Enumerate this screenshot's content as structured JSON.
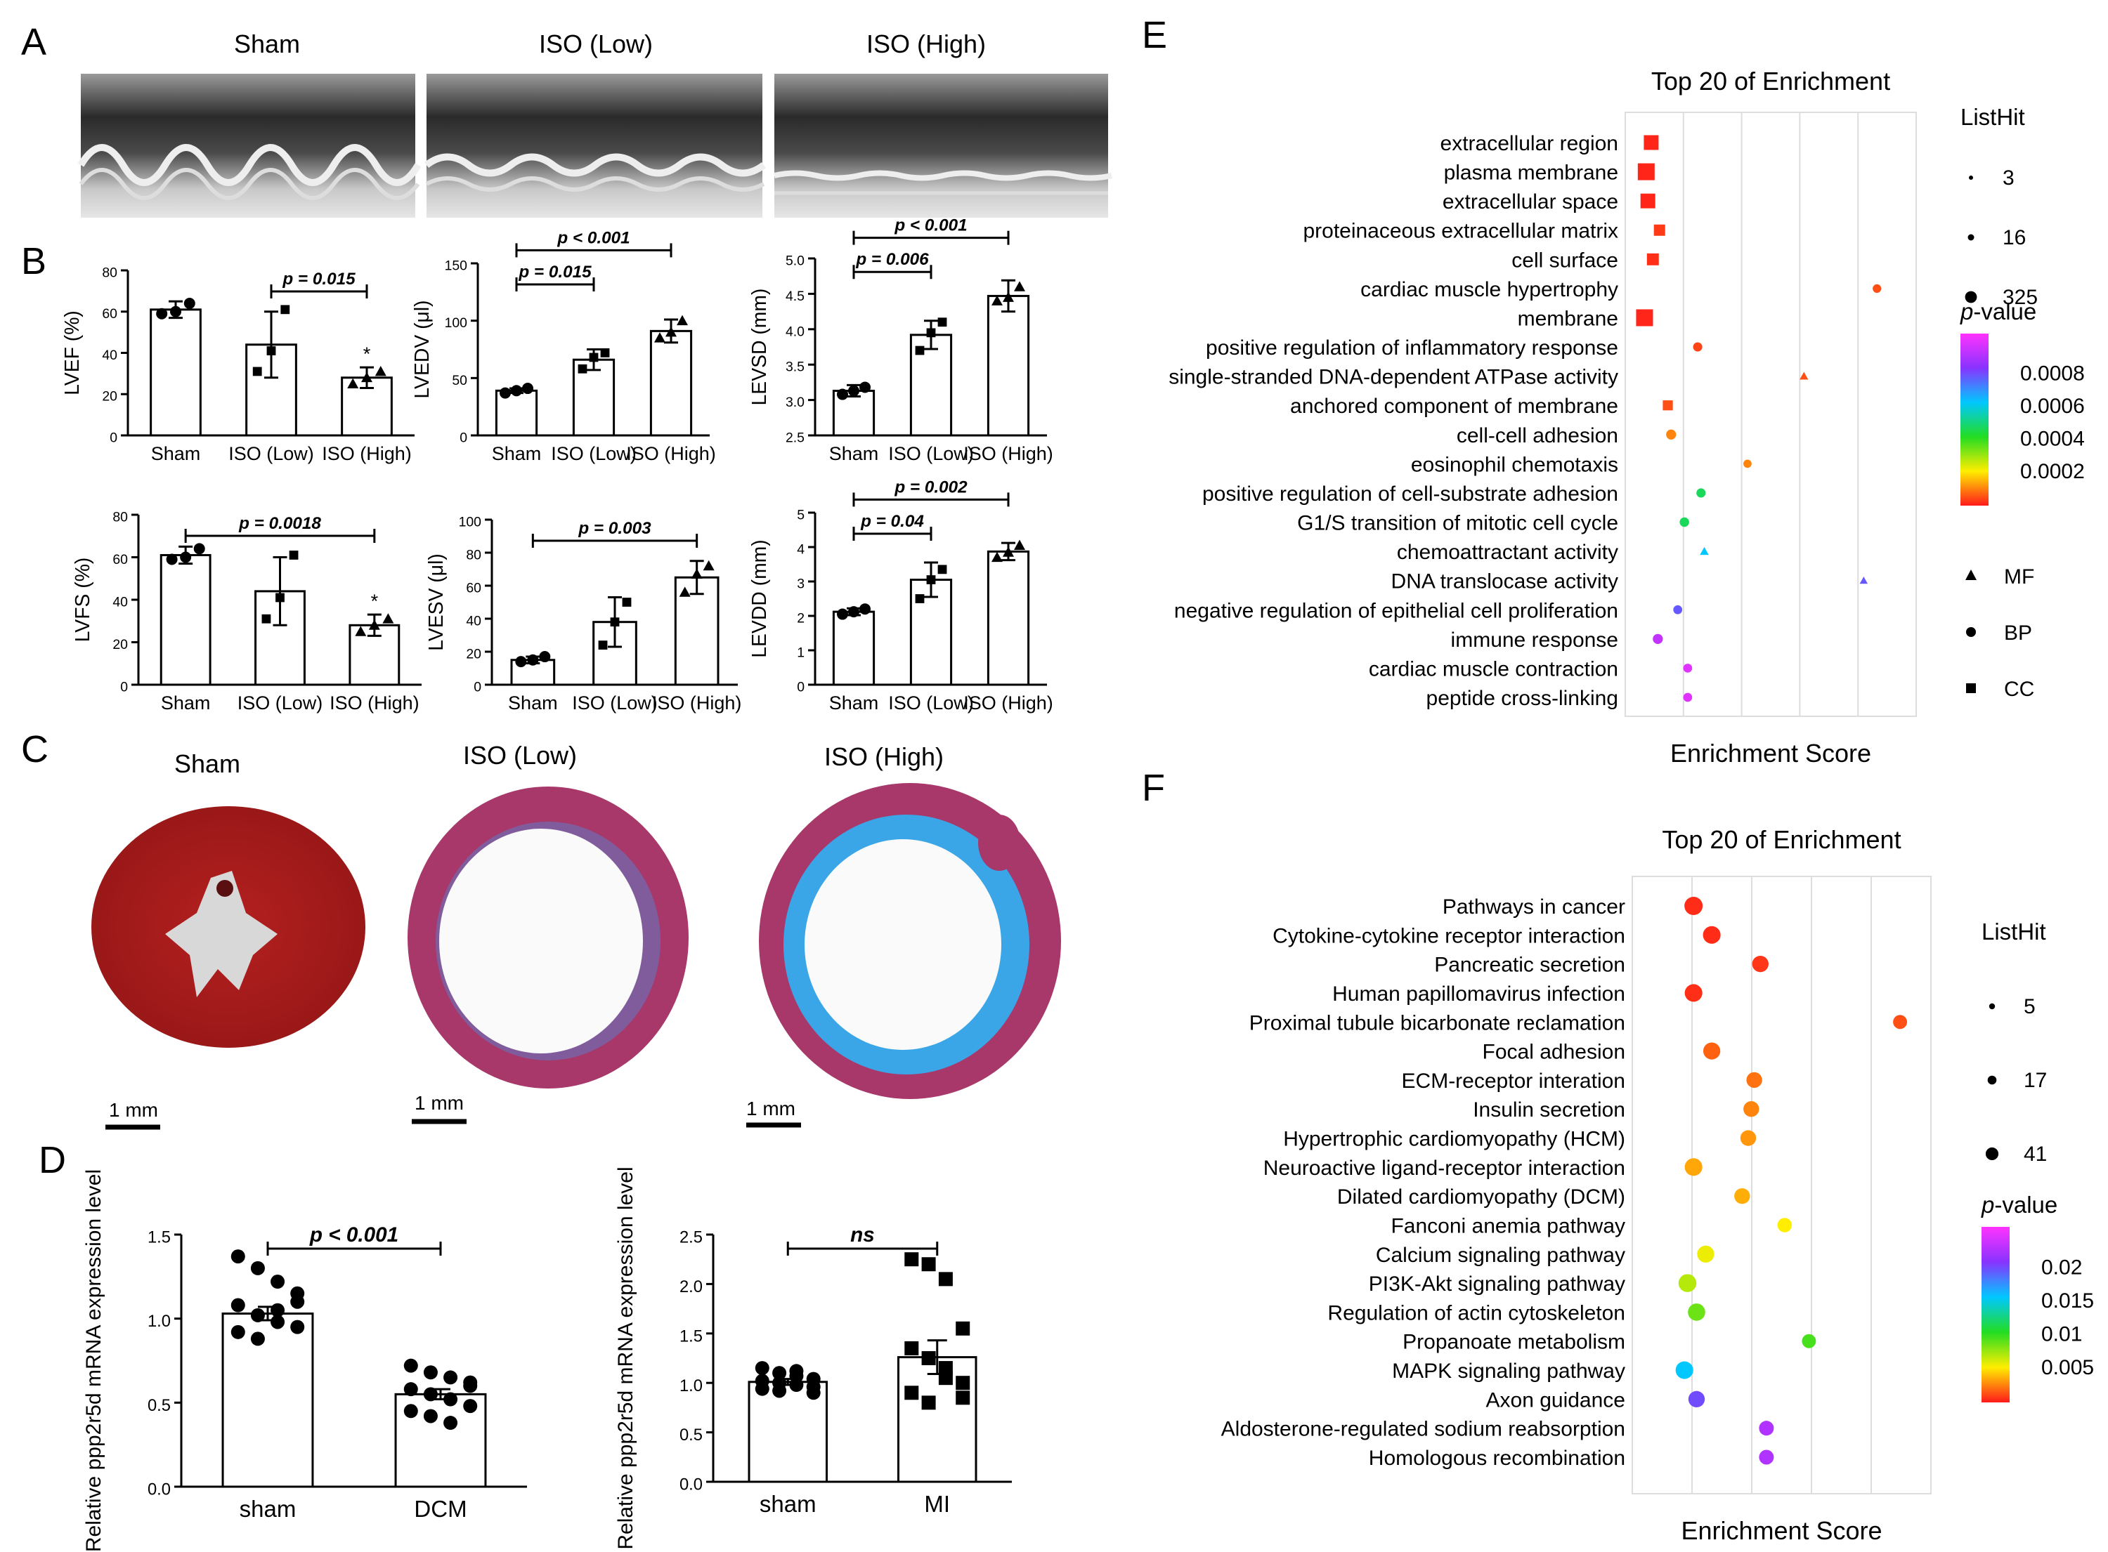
{
  "panel_labels": {
    "A": "A",
    "B": "B",
    "C": "C",
    "D": "D",
    "E": "E",
    "F": "F"
  },
  "panel_a": {
    "titles": [
      "Sham",
      "ISO (Low)",
      "ISO (High)"
    ]
  },
  "chart_data": [
    {
      "id": "lvef",
      "type": "bar",
      "title": "",
      "ylabel": "LVEF (%)",
      "xlabel": "",
      "categories": [
        "Sham",
        "ISO (Low)",
        "ISO (High)"
      ],
      "values": [
        61,
        44,
        28
      ],
      "errors": [
        4,
        16,
        5
      ],
      "points": [
        [
          59,
          60,
          64
        ],
        [
          31,
          41,
          61
        ],
        [
          25,
          28,
          31
        ]
      ],
      "ylim": [
        0,
        80
      ],
      "yticks": [
        "0",
        "20",
        "40",
        "60",
        "80"
      ],
      "significance": [
        {
          "from": 1,
          "to": 2,
          "label": "p = 0.015"
        }
      ],
      "stars": [
        {
          "index": 2,
          "label": "*"
        }
      ]
    },
    {
      "id": "lvedv",
      "type": "bar",
      "title": "",
      "ylabel": "LVEDV (μl)",
      "xlabel": "",
      "categories": [
        "Sham",
        "ISO (Low)",
        "ISO (High)"
      ],
      "values": [
        39,
        66,
        91
      ],
      "errors": [
        2,
        9,
        10
      ],
      "points": [
        [
          37,
          39,
          41
        ],
        [
          58,
          68,
          72
        ],
        [
          85,
          90,
          100
        ]
      ],
      "ylim": [
        0,
        150
      ],
      "yticks": [
        "0",
        "50",
        "100",
        "150"
      ],
      "significance": [
        {
          "from": 0,
          "to": 1,
          "label": "p = 0.015"
        },
        {
          "from": 0,
          "to": 2,
          "label": "p < 0.001"
        }
      ],
      "stars": []
    },
    {
      "id": "levsd",
      "type": "bar",
      "title": "",
      "ylabel": "LEVSD (mm)",
      "xlabel": "",
      "categories": [
        "Sham",
        "ISO (Low)",
        "ISO (High)"
      ],
      "values": [
        3.13,
        3.92,
        4.47
      ],
      "errors": [
        0.08,
        0.2,
        0.22
      ],
      "points": [
        [
          3.08,
          3.13,
          3.18
        ],
        [
          3.7,
          3.95,
          4.1
        ],
        [
          4.4,
          4.45,
          4.6
        ]
      ],
      "ylim": [
        2.5,
        5.0
      ],
      "yticks": [
        "2.5",
        "3.0",
        "3.5",
        "4.0",
        "4.5",
        "5.0"
      ],
      "significance": [
        {
          "from": 0,
          "to": 1,
          "label": "p = 0.006"
        },
        {
          "from": 0,
          "to": 2,
          "label": "p < 0.001"
        }
      ],
      "stars": []
    },
    {
      "id": "lvfs",
      "type": "bar",
      "title": "",
      "ylabel": "LVFS (%)",
      "xlabel": "",
      "categories": [
        "Sham",
        "ISO (Low)",
        "ISO (High)"
      ],
      "values": [
        61,
        44,
        28
      ],
      "errors": [
        4,
        16,
        5
      ],
      "points": [
        [
          59,
          60,
          64
        ],
        [
          31,
          41,
          61
        ],
        [
          25,
          28,
          31
        ]
      ],
      "ylim": [
        0,
        80
      ],
      "yticks": [
        "0",
        "20",
        "40",
        "60",
        "80"
      ],
      "significance": [
        {
          "from": 0,
          "to": 2,
          "label": "p = 0.0018"
        }
      ],
      "stars": [
        {
          "index": 2,
          "label": "*"
        }
      ]
    },
    {
      "id": "lvesv",
      "type": "bar",
      "title": "",
      "ylabel": "LVESV (μl)",
      "xlabel": "",
      "categories": [
        "Sham",
        "ISO (Low)",
        "ISO (High)"
      ],
      "values": [
        15,
        38,
        65
      ],
      "errors": [
        2,
        15,
        10
      ],
      "points": [
        [
          14,
          15,
          17
        ],
        [
          24,
          38,
          50
        ],
        [
          56,
          67,
          72
        ]
      ],
      "ylim": [
        0,
        100
      ],
      "yticks": [
        "0",
        "20",
        "40",
        "60",
        "80",
        "100"
      ],
      "significance": [
        {
          "from": 0,
          "to": 2,
          "label": "p = 0.003"
        }
      ],
      "stars": []
    },
    {
      "id": "levdd",
      "type": "bar",
      "title": "",
      "ylabel": "LEVDD (mm)",
      "xlabel": "",
      "categories": [
        "Sham",
        "ISO (Low)",
        "ISO (High)"
      ],
      "values": [
        2.12,
        3.05,
        3.87
      ],
      "errors": [
        0.1,
        0.5,
        0.25
      ],
      "points": [
        [
          2.05,
          2.12,
          2.2
        ],
        [
          2.5,
          3.05,
          3.35
        ],
        [
          3.7,
          3.85,
          4.05
        ]
      ],
      "ylim": [
        0,
        5
      ],
      "yticks": [
        "0",
        "1",
        "2",
        "3",
        "4",
        "5"
      ],
      "significance": [
        {
          "from": 0,
          "to": 1,
          "label": "p = 0.04"
        },
        {
          "from": 0,
          "to": 2,
          "label": "p = 0.002"
        }
      ],
      "stars": []
    },
    {
      "id": "dcm",
      "type": "bar",
      "title": "",
      "ylabel": "Relative ppp2r5d mRNA  expression level",
      "xlabel": "",
      "categories": [
        "sham",
        "DCM"
      ],
      "values": [
        1.03,
        0.55
      ],
      "errors": [
        0.04,
        0.03
      ],
      "points": [
        [
          1.37,
          1.3,
          1.22,
          1.15,
          1.08,
          1.02,
          0.98,
          0.95,
          0.92,
          0.88,
          1.05,
          1.1
        ],
        [
          0.72,
          0.68,
          0.65,
          0.62,
          0.58,
          0.55,
          0.52,
          0.48,
          0.45,
          0.42,
          0.38,
          0.6
        ]
      ],
      "ylim": [
        0,
        1.5
      ],
      "yticks": [
        "0.0",
        "0.5",
        "1.0",
        "1.5"
      ],
      "significance": [
        {
          "from": 0,
          "to": 1,
          "label": "p < 0.001"
        }
      ],
      "stars": []
    },
    {
      "id": "mi",
      "type": "bar",
      "title": "",
      "ylabel": "Relative ppp2r5d mRNA  expression level",
      "xlabel": "",
      "categories": [
        "sham",
        "MI"
      ],
      "values": [
        1.01,
        1.26
      ],
      "errors": [
        0.03,
        0.17
      ],
      "points": [
        [
          1.15,
          1.1,
          1.07,
          1.04,
          1.02,
          1.0,
          0.98,
          0.96,
          0.94,
          0.92,
          1.12,
          0.9
        ],
        [
          2.25,
          2.2,
          2.05,
          1.55,
          1.35,
          1.25,
          1.15,
          1.0,
          0.9,
          0.8,
          1.05,
          0.85
        ]
      ],
      "ylim": [
        0,
        2.5
      ],
      "yticks": [
        "0.0",
        "0.5",
        "1.0",
        "1.5",
        "2.0",
        "2.5"
      ],
      "significance": [
        {
          "from": 0,
          "to": 1,
          "label": "ns"
        }
      ],
      "stars": []
    },
    {
      "id": "go_enrichment",
      "type": "scatter",
      "title": "Top 20 of Enrichment",
      "xlabel": "Enrichment Score",
      "terms": [
        {
          "name": "extracellular region",
          "score": 0.4,
          "p": 1e-05,
          "size": 200,
          "cat": "CC"
        },
        {
          "name": "plasma membrane",
          "score": 0.25,
          "p": 1e-05,
          "size": 325,
          "cat": "CC"
        },
        {
          "name": "extracellular space",
          "score": 0.3,
          "p": 1e-05,
          "size": 200,
          "cat": "CC"
        },
        {
          "name": "proteinaceous extracellular matrix",
          "score": 0.65,
          "p": 3e-05,
          "size": 60,
          "cat": "CC"
        },
        {
          "name": "cell surface",
          "score": 0.45,
          "p": 2e-05,
          "size": 80,
          "cat": "CC"
        },
        {
          "name": "cardiac muscle hypertrophy",
          "score": 7.2,
          "p": 5e-05,
          "size": 8,
          "cat": "BP"
        },
        {
          "name": "membrane",
          "score": 0.2,
          "p": 1e-05,
          "size": 325,
          "cat": "CC"
        },
        {
          "name": "positive regulation of inflammatory response",
          "score": 1.8,
          "p": 4e-05,
          "size": 16,
          "cat": "BP"
        },
        {
          "name": "single-stranded DNA-dependent ATPase activity",
          "score": 5.0,
          "p": 5e-05,
          "size": 8,
          "cat": "MF"
        },
        {
          "name": "anchored component of membrane",
          "score": 0.9,
          "p": 5e-05,
          "size": 30,
          "cat": "CC"
        },
        {
          "name": "cell-cell adhesion",
          "score": 1.0,
          "p": 0.0001,
          "size": 30,
          "cat": "BP"
        },
        {
          "name": "eosinophil chemotaxis",
          "score": 3.3,
          "p": 0.0001,
          "size": 5,
          "cat": "BP"
        },
        {
          "name": "positive regulation of cell-substrate adhesion",
          "score": 1.9,
          "p": 0.00045,
          "size": 16,
          "cat": "BP"
        },
        {
          "name": "G1/S transition of mitotic cell cycle",
          "score": 1.4,
          "p": 0.00045,
          "size": 20,
          "cat": "BP"
        },
        {
          "name": "chemoattractant activity",
          "score": 2.0,
          "p": 0.0006,
          "size": 10,
          "cat": "MF"
        },
        {
          "name": "DNA translocase activity",
          "score": 6.8,
          "p": 0.00075,
          "size": 3,
          "cat": "MF"
        },
        {
          "name": "negative regulation of epithelial cell proliferation",
          "score": 1.2,
          "p": 0.00075,
          "size": 12,
          "cat": "BP"
        },
        {
          "name": "immune response",
          "score": 0.6,
          "p": 0.0009,
          "size": 30,
          "cat": "BP"
        },
        {
          "name": "cardiac muscle contraction",
          "score": 1.5,
          "p": 0.00095,
          "size": 12,
          "cat": "BP"
        },
        {
          "name": "peptide cross-linking",
          "score": 1.5,
          "p": 0.00095,
          "size": 12,
          "cat": "BP"
        }
      ],
      "legend": {
        "size_title": "ListHit",
        "sizes": [
          "3",
          "16",
          "325"
        ],
        "p_title": "-value",
        "p_prefix": "p",
        "p_ticks": [
          "0.0008",
          "0.0006",
          "0.0004",
          "0.0002"
        ],
        "shapes": [
          "MF",
          "BP",
          "CC"
        ]
      }
    },
    {
      "id": "kegg_enrichment",
      "type": "scatter",
      "title": "Top 20 of Enrichment",
      "xlabel": "Enrichment Score",
      "terms": [
        {
          "name": "Pathways in cancer",
          "score": 0.8,
          "p": 0.0005,
          "size": 41
        },
        {
          "name": "Cytokine-cytokine receptor interaction",
          "score": 1.1,
          "p": 0.0005,
          "size": 35
        },
        {
          "name": "Pancreatic secretion",
          "score": 1.9,
          "p": 0.0008,
          "size": 25
        },
        {
          "name": "Human papillomavirus infection",
          "score": 0.8,
          "p": 0.0006,
          "size": 35
        },
        {
          "name": "Proximal tubule bicarbonate reclamation",
          "score": 4.2,
          "p": 0.0015,
          "size": 10
        },
        {
          "name": "Focal adhesion",
          "score": 1.1,
          "p": 0.002,
          "size": 30
        },
        {
          "name": "ECM-receptor interation",
          "score": 1.8,
          "p": 0.0025,
          "size": 20
        },
        {
          "name": "Insulin secretion",
          "score": 1.75,
          "p": 0.003,
          "size": 20
        },
        {
          "name": "Hypertrophic cardiomyopathy (HCM)",
          "score": 1.7,
          "p": 0.0035,
          "size": 20
        },
        {
          "name": "Neuroactive ligand-receptor interaction",
          "score": 0.8,
          "p": 0.004,
          "size": 35
        },
        {
          "name": "Dilated cardiomyopathy (DCM)",
          "score": 1.6,
          "p": 0.0042,
          "size": 20
        },
        {
          "name": "Fanconi anemia pathway",
          "score": 2.3,
          "p": 0.006,
          "size": 12
        },
        {
          "name": "Calcium signaling pathway",
          "score": 1.0,
          "p": 0.0065,
          "size": 30
        },
        {
          "name": "PI3K-Akt signaling pathway",
          "score": 0.7,
          "p": 0.008,
          "size": 38
        },
        {
          "name": "Regulation of actin cytoskeleton",
          "score": 0.85,
          "p": 0.01,
          "size": 32
        },
        {
          "name": "Propanoate metabolism",
          "score": 2.7,
          "p": 0.011,
          "size": 10
        },
        {
          "name": "MAPK signaling pathway",
          "score": 0.65,
          "p": 0.018,
          "size": 35
        },
        {
          "name": "Axon guidance",
          "score": 0.85,
          "p": 0.023,
          "size": 25
        },
        {
          "name": "Aldosterone-regulated sodium reabsorption",
          "score": 2.0,
          "p": 0.026,
          "size": 14
        },
        {
          "name": "Homologous recombination",
          "score": 2.0,
          "p": 0.026,
          "size": 14
        }
      ],
      "legend": {
        "size_title": "ListHit",
        "sizes": [
          "5",
          "17",
          "41"
        ],
        "p_title": "-value",
        "p_prefix": "p",
        "p_ticks": [
          "0.02",
          "0.015",
          "0.01",
          "0.005"
        ]
      }
    }
  ],
  "panel_c": {
    "titles": [
      "Sham",
      "ISO (Low)",
      "ISO (High)"
    ],
    "scale_bars": [
      "1 mm",
      "1 mm",
      "1 mm"
    ]
  }
}
